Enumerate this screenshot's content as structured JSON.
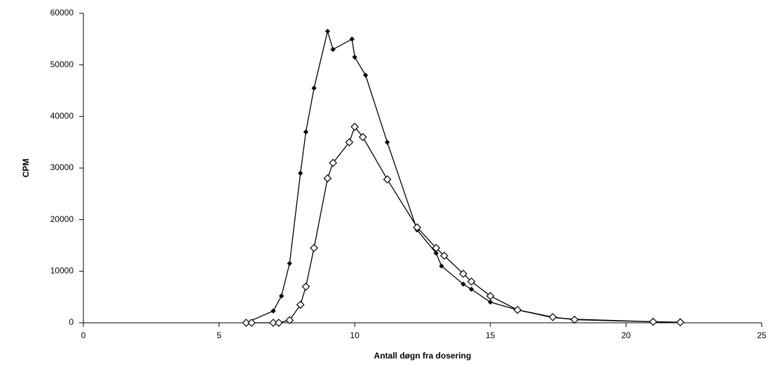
{
  "chart_data": {
    "type": "line",
    "x_label": "Antall døgn fra dosering",
    "y_label": "CPM",
    "xlim": [
      0,
      25
    ],
    "xticks": [
      0,
      5,
      10,
      15,
      20,
      25
    ],
    "ylim": [
      0,
      60000
    ],
    "yticks": [
      0,
      10000,
      20000,
      30000,
      40000,
      50000,
      60000
    ],
    "grid": false,
    "series": [
      {
        "color": "#000000",
        "marker": "filled",
        "x": [
          6.0,
          7.0,
          7.3,
          7.6,
          8.0,
          8.2,
          8.5,
          9.0,
          9.2,
          9.9,
          10.0,
          10.4,
          11.2,
          12.3,
          13.0,
          13.2,
          14.0,
          14.3,
          15.0,
          16.0,
          17.3,
          18.1,
          21.0,
          22.0
        ],
        "values": [
          0,
          2300,
          5200,
          11500,
          29000,
          37000,
          45500,
          56500,
          53000,
          55000,
          51500,
          48000,
          35000,
          18000,
          13500,
          11000,
          7500,
          6500,
          4000,
          2500,
          1000,
          700,
          200,
          100
        ]
      },
      {
        "color": "#000000",
        "marker": "open",
        "x": [
          6.0,
          6.2,
          7.0,
          7.2,
          7.6,
          8.0,
          8.2,
          8.5,
          9.0,
          9.2,
          9.8,
          10.0,
          10.3,
          11.2,
          12.3,
          13.0,
          13.3,
          14.0,
          14.3,
          15.0,
          16.0,
          17.3,
          18.1,
          21.0,
          22.0
        ],
        "values": [
          0,
          0,
          0,
          0,
          500,
          3500,
          7000,
          14500,
          28000,
          31000,
          35000,
          38000,
          36000,
          27800,
          18500,
          14500,
          13000,
          9500,
          8000,
          5200,
          2500,
          1100,
          600,
          200,
          100
        ]
      }
    ]
  }
}
